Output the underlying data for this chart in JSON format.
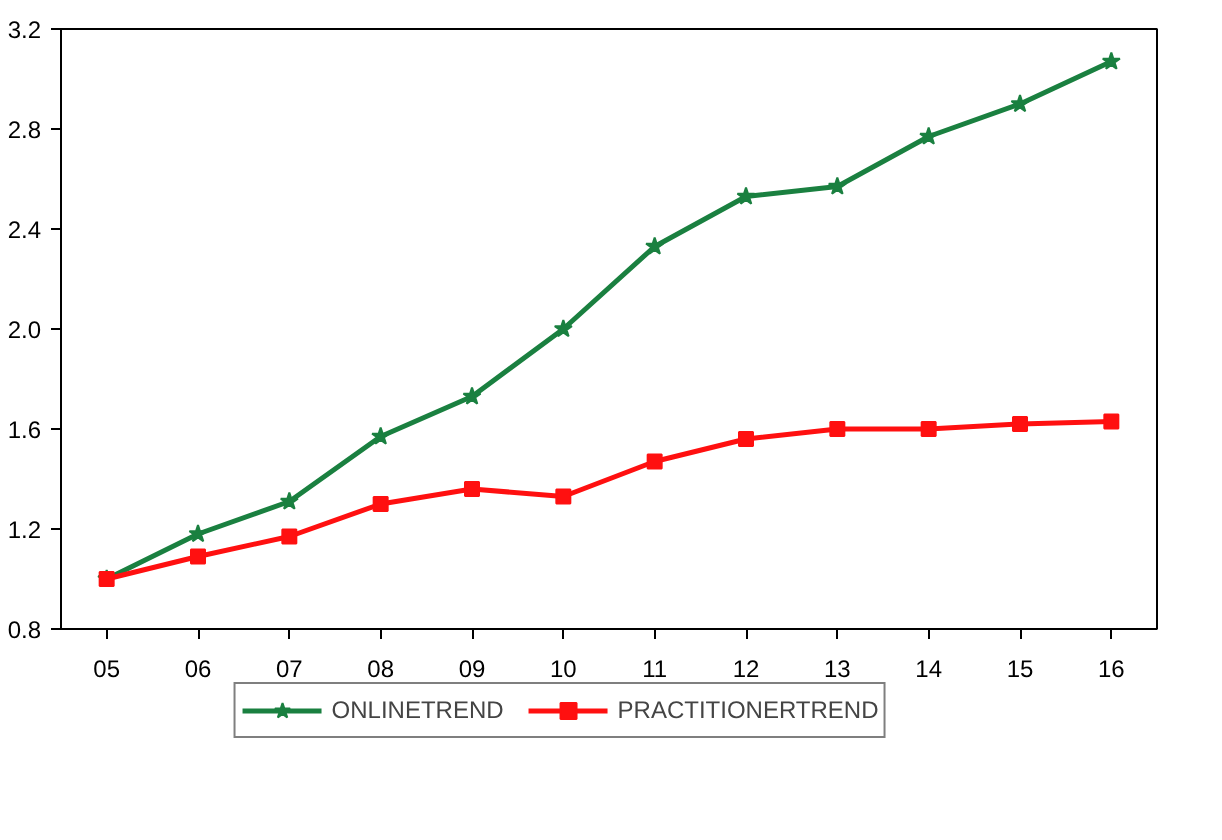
{
  "chart_data": {
    "type": "line",
    "categories": [
      "05",
      "06",
      "07",
      "08",
      "09",
      "10",
      "11",
      "12",
      "13",
      "14",
      "15",
      "16"
    ],
    "series": [
      {
        "name": "ONLINETREND",
        "color": "#1a8040",
        "marker": "star",
        "values": [
          1.0,
          1.18,
          1.31,
          1.57,
          1.73,
          2.0,
          2.33,
          2.53,
          2.57,
          2.77,
          2.9,
          3.07
        ]
      },
      {
        "name": "PRACTITIONERTREND",
        "color": "#ff1010",
        "marker": "square",
        "values": [
          1.0,
          1.09,
          1.17,
          1.3,
          1.36,
          1.33,
          1.47,
          1.56,
          1.6,
          1.6,
          1.62,
          1.63
        ]
      }
    ],
    "ylim": [
      0.8,
      3.2
    ],
    "yticks": [
      0.8,
      1.2,
      1.6,
      {
        "value": 2,
        "label": "2.0"
      },
      2.4,
      2.8,
      3.2
    ],
    "grid": false,
    "legend": "bottom",
    "line_style": "solid"
  }
}
